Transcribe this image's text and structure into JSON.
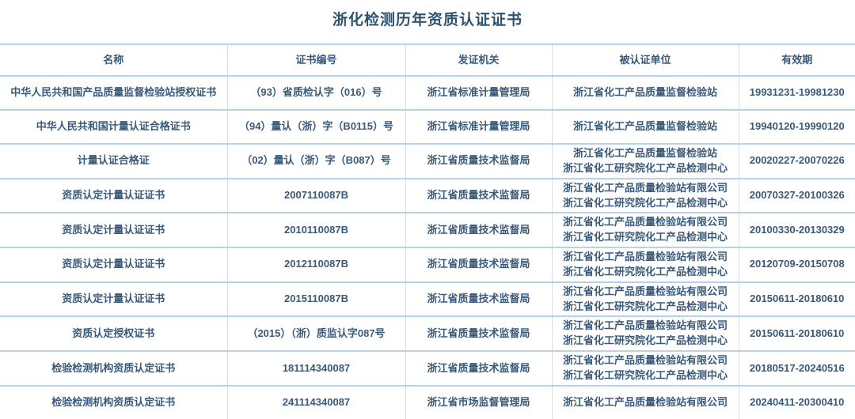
{
  "title": "浙化检测历年资质认证证书",
  "table": {
    "headers": [
      "名称",
      "证书编号",
      "发证机关",
      "被认证单位",
      "有效期"
    ],
    "rows": [
      {
        "name": "中华人民共和国产品质量监督检验站授权证书",
        "cert_no": "（93）省质检认字（016）号",
        "issuer": "浙江省标准计量管理局",
        "certified_units": [
          "浙江省化工产品质量监督检验站"
        ],
        "validity": "19931231-19981230"
      },
      {
        "name": "中华人民共和国计量认证合格证书",
        "cert_no": "（94）量认（浙）字（B0115）号",
        "issuer": "浙江省标准计量管理局",
        "certified_units": [
          "浙江省化工产品质量监督检验站"
        ],
        "validity": "19940120-19990120"
      },
      {
        "name": "计量认证合格证",
        "cert_no": "（02）量认（浙）字（B087）号",
        "issuer": "浙江省质量技术监督局",
        "certified_units": [
          "浙江省化工产品质量监督检验站",
          "浙江省化工研究院化工产品检测中心"
        ],
        "validity": "20020227-20070226"
      },
      {
        "name": "资质认定计量认证证书",
        "cert_no": "2007110087B",
        "issuer": "浙江省质量技术监督局",
        "certified_units": [
          "浙江省化工产品质量检验站有限公司",
          "浙江省化工研究院化工产品检测中心"
        ],
        "validity": "20070327-20100326"
      },
      {
        "name": "资质认定计量认证证书",
        "cert_no": "2010110087B",
        "issuer": "浙江省质量技术监督局",
        "certified_units": [
          "浙江省化工产品质量检验站有限公司",
          "浙江省化工研究院化工产品检测中心"
        ],
        "validity": "20100330-20130329"
      },
      {
        "name": "资质认定计量认证证书",
        "cert_no": "2012110087B",
        "issuer": "浙江省质量技术监督局",
        "certified_units": [
          "浙江省化工产品质量检验站有限公司",
          "浙江省化工研究院化工产品检测中心"
        ],
        "validity": "20120709-20150708"
      },
      {
        "name": "资质认定计量认证证书",
        "cert_no": "2015110087B",
        "issuer": "浙江省质量技术监督局",
        "certified_units": [
          "浙江省化工产品质量检验站有限公司",
          "浙江省化工研究院化工产品检测中心"
        ],
        "validity": "20150611-20180610"
      },
      {
        "name": "资质认定授权证书",
        "cert_no": "（2015）（浙）质监认字087号",
        "issuer": "浙江省质量技术监督局",
        "certified_units": [
          "浙江省化工产品质量检验站有限公司",
          "浙江省化工研究院化工产品检测中心"
        ],
        "validity": "20150611-20180610"
      },
      {
        "name": "检验检测机构资质认定证书",
        "cert_no": "181114340087",
        "issuer": "浙江省质量技术监督局",
        "certified_units": [
          "浙江省化工产品质量检验站有限公司",
          "浙江省化工研究院化工产品检测中心"
        ],
        "validity": "20180517-20240516"
      },
      {
        "name": "检验检测机构资质认定证书",
        "cert_no": "241114340087",
        "issuer": "浙江省市场监督管理局",
        "certified_units": [
          "浙江省化工产品质量检验站有限公司"
        ],
        "validity": "20240411-20300410"
      }
    ]
  },
  "colors": {
    "title_text": "#2f536f",
    "cell_text": "#3a5a7a",
    "row_border": "#b8d2ea",
    "column_border": "#d9dde2",
    "background": "#ffffff"
  }
}
